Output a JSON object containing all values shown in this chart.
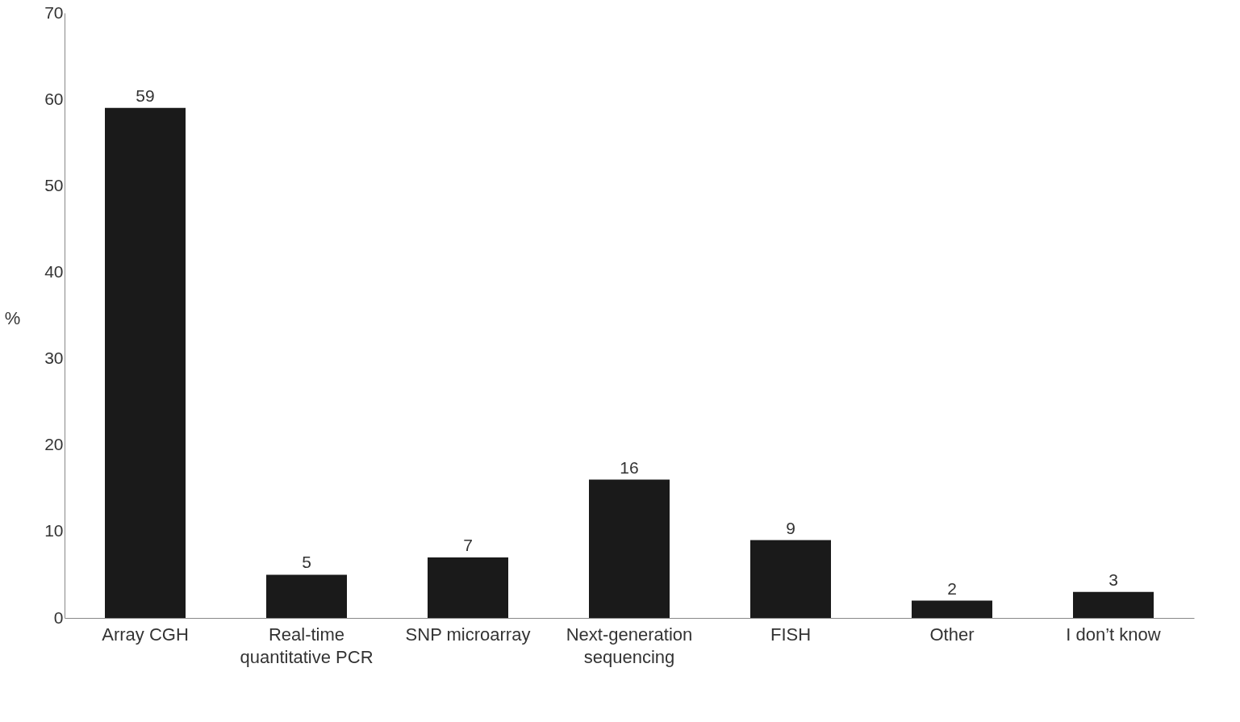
{
  "chart_data": {
    "type": "bar",
    "ylabel": "%",
    "categories": [
      "Array CGH",
      "Real-time quantitative PCR",
      "SNP microarray",
      "Next-generation sequencing",
      "FISH",
      "Other",
      "I don’t know"
    ],
    "values": [
      59,
      5,
      7,
      16,
      9,
      2,
      3
    ],
    "color": "#1a1a1a",
    "ylim": [
      0,
      70
    ],
    "yticks": [
      0,
      10,
      20,
      30,
      40,
      50,
      60,
      70
    ],
    "grid": false,
    "data_labels": true
  }
}
